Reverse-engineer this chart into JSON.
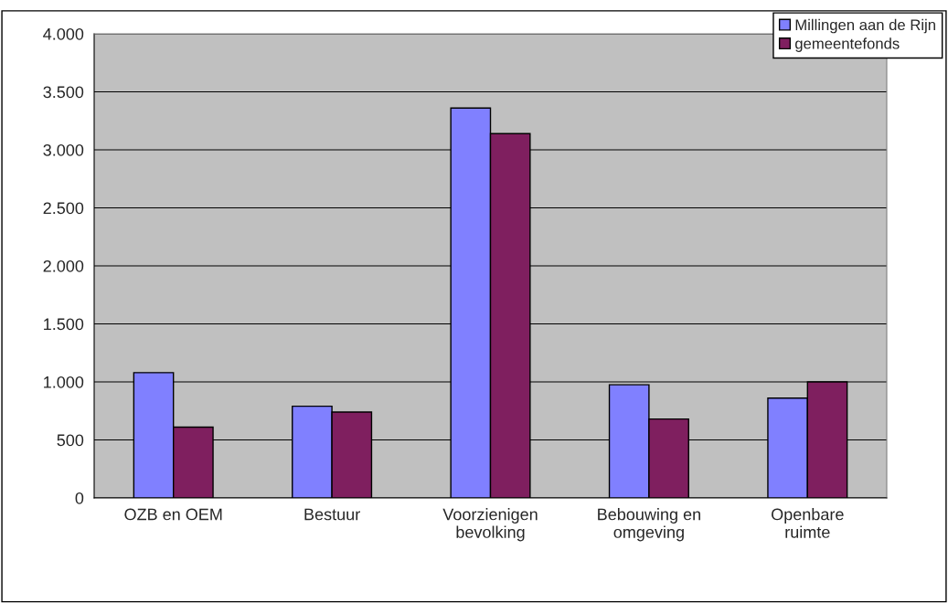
{
  "chart_data": {
    "type": "bar",
    "categories": [
      "OZB en OEM",
      "Bestuur",
      "Voorzienigen\nbevolking",
      "Bebouwing en\nomgeving",
      "Openbare\nruimte"
    ],
    "series": [
      {
        "name": "Millingen aan de Rijn",
        "color": "#8080ff",
        "values": [
          1080,
          790,
          3360,
          975,
          860
        ]
      },
      {
        "name": "gemeentefonds",
        "color": "#7f1f5f",
        "values": [
          610,
          740,
          3140,
          680,
          1000
        ]
      }
    ],
    "ylim": [
      0,
      4000
    ],
    "yticks": [
      {
        "value": 0,
        "label": "0"
      },
      {
        "value": 500,
        "label": "500"
      },
      {
        "value": 1000,
        "label": "1.000"
      },
      {
        "value": 1500,
        "label": "1.500"
      },
      {
        "value": 2000,
        "label": "2.000"
      },
      {
        "value": 2500,
        "label": "2.500"
      },
      {
        "value": 3000,
        "label": "3.000"
      },
      {
        "value": 3500,
        "label": "3.500"
      },
      {
        "value": 4000,
        "label": "4.000"
      }
    ],
    "grid": "y",
    "legend": "top right"
  }
}
